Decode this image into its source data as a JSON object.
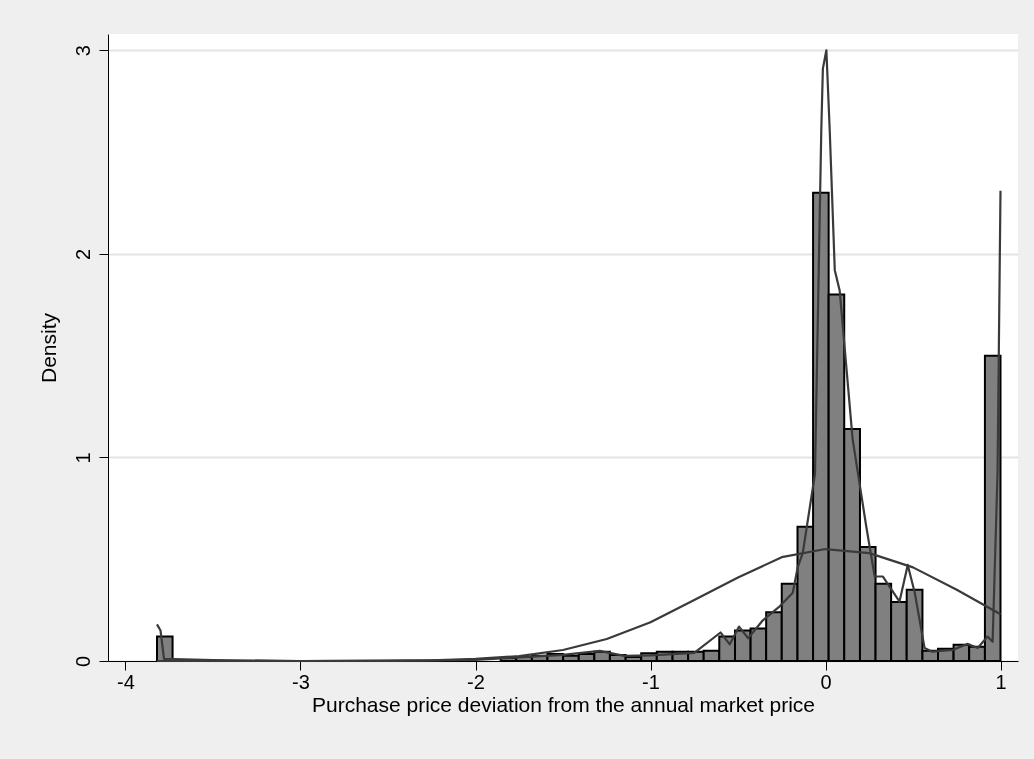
{
  "chart_data": {
    "type": "histogram",
    "xlabel": "Purchase price deviation from the annual market price",
    "ylabel": "Density",
    "bins": [
      -3.82,
      -3.731,
      -3.641,
      -3.552,
      -3.463,
      -3.374,
      -3.284,
      -3.195,
      -3.106,
      -3.017,
      -2.927,
      -2.838,
      -2.749,
      -2.66,
      -2.57,
      -2.481,
      -2.392,
      -2.303,
      -2.213,
      -2.124,
      -2.035,
      -1.946,
      -1.856,
      -1.767,
      -1.678,
      -1.589,
      -1.499,
      -1.41,
      -1.321,
      -1.232,
      -1.142,
      -1.053,
      -0.964,
      -0.874,
      -0.785,
      -0.696,
      -0.607,
      -0.517,
      -0.428,
      -0.339,
      -0.25,
      -0.16,
      -0.071,
      0.018,
      0.107,
      0.197,
      0.286,
      0.375,
      0.464,
      0.554,
      0.643,
      0.732,
      0.821,
      0.911,
      1.0
    ],
    "values": [
      0.12,
      0,
      0,
      null,
      null,
      0,
      0,
      0,
      null,
      null,
      0,
      0,
      0,
      0,
      0,
      null,
      null,
      null,
      null,
      null,
      null,
      null,
      0.015,
      0.02,
      0.026,
      0.034,
      0.026,
      0.035,
      0.045,
      0.03,
      0.02,
      0.038,
      0.046,
      0.046,
      0.046,
      0.05,
      0.12,
      0.15,
      0.16,
      0.24,
      0.38,
      0.66,
      2.3,
      1.8,
      1.14,
      0.56,
      0.38,
      0.29,
      0.35,
      0.05,
      0.06,
      0.08,
      0.07,
      1.5
    ],
    "color": "#808080",
    "series": [
      {
        "type": "line",
        "color": "#3a3a3a",
        "x": [
          -3.82,
          -3.8,
          -3.78,
          -3.5,
          -3,
          -2.5,
          -2,
          -1.75,
          -1.5,
          -1.29,
          -1.15,
          -1,
          -0.75,
          -0.6,
          -0.547,
          -0.494,
          -0.442,
          -0.358,
          -0.26,
          -0.187,
          -0.159,
          -0.13,
          -0.06,
          -0.024,
          -0.015,
          0.005,
          0.024,
          0.053,
          0.081,
          0.155,
          0.233,
          0.281,
          0.328,
          0.423,
          0.47,
          0.51,
          0.566,
          0.61,
          0.726,
          0.81,
          0.87,
          0.926,
          0.955,
          0.983,
          1.0
        ],
        "values": [
          0.18,
          0.15,
          0.01,
          0.005,
          0,
          0.002,
          0.005,
          0.018,
          0.03,
          0.05,
          0.025,
          0.028,
          0.04,
          0.14,
          0.082,
          0.169,
          0.112,
          0.2,
          0.27,
          0.335,
          0.46,
          0.53,
          0.92,
          2.61,
          2.91,
          3.0,
          2.61,
          1.92,
          1.82,
          1.09,
          0.66,
          0.415,
          0.415,
          0.292,
          0.472,
          0.335,
          0.064,
          0.046,
          0.054,
          0.084,
          0.064,
          0.12,
          0.095,
          0.92,
          2.31
        ]
      },
      {
        "type": "line",
        "color": "#3a3a3a",
        "x": [
          -3.82,
          -3,
          -2.5,
          -2.25,
          -2,
          -1.75,
          -1.5,
          -1.25,
          -1,
          -0.75,
          -0.5,
          -0.25,
          0,
          0.25,
          0.5,
          0.75,
          1.0
        ],
        "values": [
          0,
          0,
          0.001,
          0.003,
          0.01,
          0.024,
          0.054,
          0.108,
          0.19,
          0.3,
          0.41,
          0.51,
          0.55,
          0.53,
          0.46,
          0.35,
          0.23
        ]
      }
    ],
    "xlim": [
      -4.1,
      1.1
    ],
    "ylim": [
      0,
      3.08
    ],
    "xticks": [
      -4,
      -3,
      -2,
      -1,
      0,
      1
    ],
    "yticks": [
      0,
      1,
      2,
      3
    ],
    "grid": "y"
  }
}
